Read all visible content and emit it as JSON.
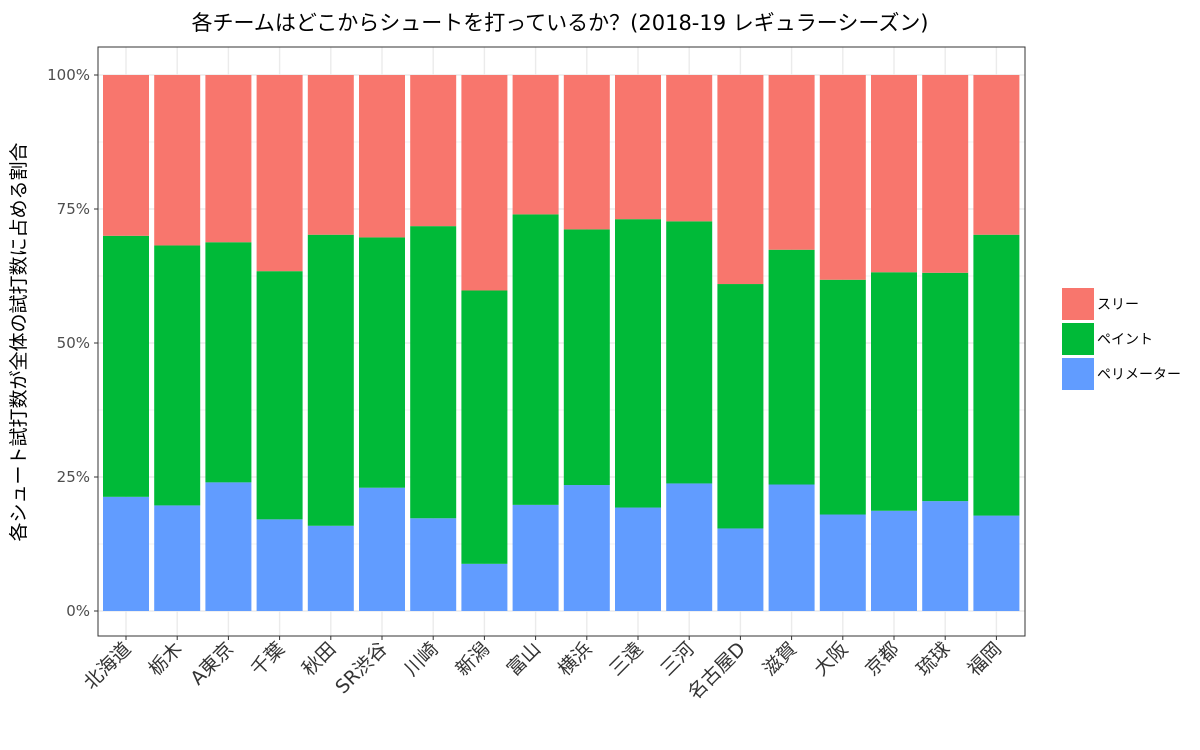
{
  "chart_data": {
    "type": "bar",
    "stacked": true,
    "title": "各チームはどこからシュートを打っているか？(2018-19 レギュラーシーズン)",
    "xlabel": "",
    "ylabel": "各シュート試打数が全体の試打数に占める割合",
    "ylim": [
      0,
      1
    ],
    "yticks": [
      {
        "value": 0,
        "label": "0%"
      },
      {
        "value": 0.25,
        "label": "25%"
      },
      {
        "value": 0.5,
        "label": "50%"
      },
      {
        "value": 0.75,
        "label": "75%"
      },
      {
        "value": 1,
        "label": "100%"
      }
    ],
    "categories": [
      "北海道",
      "栃木",
      "A東京",
      "千葉",
      "秋田",
      "SR渋谷",
      "川崎",
      "新潟",
      "富山",
      "横浜",
      "三遠",
      "三河",
      "名古屋D",
      "滋賀",
      "大阪",
      "京都",
      "琉球",
      "福岡"
    ],
    "series": [
      {
        "name": "ペリメーター",
        "color": "#619cff",
        "values": [
          0.213,
          0.197,
          0.24,
          0.171,
          0.159,
          0.23,
          0.173,
          0.088,
          0.198,
          0.235,
          0.193,
          0.238,
          0.154,
          0.236,
          0.18,
          0.187,
          0.205,
          0.178
        ]
      },
      {
        "name": "ペイント",
        "color": "#00ba38",
        "values": [
          0.487,
          0.485,
          0.448,
          0.463,
          0.543,
          0.467,
          0.545,
          0.51,
          0.542,
          0.477,
          0.538,
          0.489,
          0.456,
          0.438,
          0.438,
          0.445,
          0.426,
          0.524
        ]
      },
      {
        "name": "スリー",
        "color": "#f8766d",
        "values": [
          0.3,
          0.318,
          0.312,
          0.366,
          0.298,
          0.303,
          0.282,
          0.402,
          0.26,
          0.288,
          0.269,
          0.273,
          0.39,
          0.326,
          0.382,
          0.368,
          0.369,
          0.298
        ]
      }
    ],
    "legend": {
      "position": "right",
      "items": [
        {
          "label": "スリー",
          "color": "#f8766d"
        },
        {
          "label": "ペイント",
          "color": "#00ba38"
        },
        {
          "label": "ペリメーター",
          "color": "#619cff"
        }
      ]
    },
    "grid": true,
    "theme": {
      "panel_border": "#333333",
      "grid_color": "#ebebeb",
      "text_color": "#4d4d4d"
    }
  }
}
